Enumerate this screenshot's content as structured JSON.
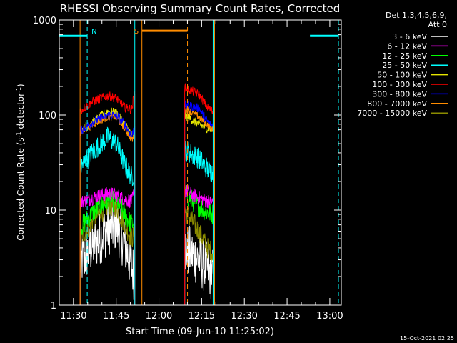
{
  "chart_data": {
    "type": "line",
    "title": "RHESSI Observing Summary Count Rates, Corrected",
    "xlabel": "Start Time (09-Jun-10 11:25:02)",
    "ylabel_main": "Corrected Count Rate (s",
    "ylabel_sup1": "-1",
    "ylabel_mid": " detector",
    "ylabel_sup2": "-1",
    "ylabel_end": ")",
    "yscale": "log",
    "ylim": [
      1,
      1000
    ],
    "y_ticks": [
      {
        "value": 1,
        "label": "1"
      },
      {
        "value": 10,
        "label": "10"
      },
      {
        "value": 100,
        "label": "100"
      },
      {
        "value": 1000,
        "label": "1000"
      }
    ],
    "x_unit": "minutes after 11:25:02",
    "xlim": [
      0,
      99
    ],
    "x_ticks": [
      {
        "value": 4.97,
        "label": "11:30"
      },
      {
        "value": 19.97,
        "label": "11:45"
      },
      {
        "value": 34.97,
        "label": "12:00"
      },
      {
        "value": 49.97,
        "label": "12:15"
      },
      {
        "value": 64.97,
        "label": "12:30"
      },
      {
        "value": 79.97,
        "label": "12:45"
      },
      {
        "value": 94.97,
        "label": "13:00"
      }
    ],
    "x_minor_step": 5,
    "legend": {
      "position": "top-right",
      "header_line1": "Det 1,3,4,5,6,9,",
      "header_line2": "Att 0",
      "entries": [
        {
          "label": "3 - 6 keV",
          "color": "#ffffff"
        },
        {
          "label": "6 - 12 keV",
          "color": "#ff00ff"
        },
        {
          "label": "12 - 25 keV",
          "color": "#00ff00"
        },
        {
          "label": "25 - 50 keV",
          "color": "#00ffff"
        },
        {
          "label": "50 - 100 keV",
          "color": "#e6e600"
        },
        {
          "label": "100 - 300 keV",
          "color": "#ff0000"
        },
        {
          "label": "300 - 800 keV",
          "color": "#0000ff"
        },
        {
          "label": "800 - 7000 keV",
          "color": "#ff8c00"
        },
        {
          "label": "7000 - 15000 keV",
          "color": "#8b8b00"
        }
      ]
    },
    "segments": [
      {
        "x_start": 7.3,
        "x_end": 26.5
      },
      {
        "x_start": 44.0,
        "x_end": 54.5
      }
    ],
    "series": [
      {
        "label": "3 - 6 keV",
        "color": "#ffffff",
        "noise": 0.3,
        "points": [
          [
            7.3,
            2.8
          ],
          [
            12,
            4.3
          ],
          [
            17,
            6.3
          ],
          [
            20,
            7.0
          ],
          [
            23,
            4.3
          ],
          [
            25.5,
            2.5
          ],
          [
            26.5,
            2.0
          ],
          [
            44,
            4.0
          ],
          [
            49,
            3.0
          ],
          [
            52,
            2.4
          ],
          [
            54.5,
            2.0
          ]
        ]
      },
      {
        "label": "6 - 12 keV",
        "color": "#ff00ff",
        "noise": 0.08,
        "points": [
          [
            7.3,
            12
          ],
          [
            12,
            13.5
          ],
          [
            17,
            15
          ],
          [
            20,
            14.5
          ],
          [
            23,
            13
          ],
          [
            25.5,
            12.5
          ],
          [
            26.5,
            16
          ],
          [
            44,
            16
          ],
          [
            49,
            13.5
          ],
          [
            52,
            12.5
          ],
          [
            54.5,
            12
          ]
        ]
      },
      {
        "label": "12 - 25 keV",
        "color": "#00ff00",
        "noise": 0.12,
        "points": [
          [
            7.3,
            6.5
          ],
          [
            12,
            9.5
          ],
          [
            17,
            12.5
          ],
          [
            20,
            12.5
          ],
          [
            23,
            9
          ],
          [
            25.5,
            7
          ],
          [
            26.5,
            8
          ],
          [
            44,
            15
          ],
          [
            49,
            11
          ],
          [
            52,
            9.5
          ],
          [
            54.5,
            9
          ]
        ]
      },
      {
        "label": "25 - 50 keV",
        "color": "#00ffff",
        "noise": 0.12,
        "points": [
          [
            7.3,
            28
          ],
          [
            12,
            42
          ],
          [
            17,
            58
          ],
          [
            20,
            50
          ],
          [
            23,
            30
          ],
          [
            25.5,
            22
          ],
          [
            26.5,
            26
          ],
          [
            44,
            43
          ],
          [
            49,
            35
          ],
          [
            52,
            27
          ],
          [
            54.5,
            24
          ]
        ]
      },
      {
        "label": "50 - 100 keV",
        "color": "#e6e600",
        "noise": 0.05,
        "points": [
          [
            7.3,
            68
          ],
          [
            12,
            85
          ],
          [
            17,
            110
          ],
          [
            20,
            105
          ],
          [
            23,
            80
          ],
          [
            25.5,
            62
          ],
          [
            26.5,
            60
          ],
          [
            44,
            100
          ],
          [
            49,
            80
          ],
          [
            52,
            72
          ],
          [
            54.5,
            68
          ]
        ]
      },
      {
        "label": "100 - 300 keV",
        "color": "#ff0000",
        "noise": 0.05,
        "points": [
          [
            7.3,
            110
          ],
          [
            12,
            140
          ],
          [
            17,
            160
          ],
          [
            20,
            150
          ],
          [
            23,
            120
          ],
          [
            25.5,
            115
          ],
          [
            26.5,
            185
          ],
          [
            44,
            195
          ],
          [
            49,
            165
          ],
          [
            52,
            120
          ],
          [
            54.5,
            105
          ]
        ]
      },
      {
        "label": "300 - 800 keV",
        "color": "#0000ff",
        "noise": 0.05,
        "points": [
          [
            7.3,
            68
          ],
          [
            12,
            85
          ],
          [
            17,
            100
          ],
          [
            20,
            100
          ],
          [
            23,
            80
          ],
          [
            25.5,
            60
          ],
          [
            26.5,
            80
          ],
          [
            44,
            128
          ],
          [
            49,
            118
          ],
          [
            52,
            85
          ],
          [
            54.5,
            75
          ]
        ]
      },
      {
        "label": "800 - 7000 keV",
        "color": "#ff8c00",
        "noise": 0.04,
        "points": [
          [
            7.3,
            65
          ],
          [
            12,
            80
          ],
          [
            17,
            95
          ],
          [
            20,
            95
          ],
          [
            23,
            72
          ],
          [
            25.5,
            55
          ],
          [
            26.5,
            60
          ],
          [
            44,
            118
          ],
          [
            49,
            95
          ],
          [
            52,
            80
          ],
          [
            54.5,
            68
          ]
        ]
      },
      {
        "label": "7000 - 15000 keV",
        "color": "#8b8b00",
        "noise": 0.12,
        "points": [
          [
            7.3,
            5
          ],
          [
            12,
            8
          ],
          [
            17,
            11
          ],
          [
            20,
            11
          ],
          [
            23,
            7
          ],
          [
            25.5,
            5
          ],
          [
            26.5,
            6
          ],
          [
            44,
            10
          ],
          [
            49,
            6
          ],
          [
            52,
            4
          ],
          [
            54.5,
            3.5
          ]
        ]
      }
    ],
    "night_bars": [
      {
        "x_start": 0,
        "x_end": 9.8,
        "y": 680,
        "color": "#00ffff"
      },
      {
        "x_start": 88.0,
        "x_end": 98.0,
        "y": 680,
        "color": "#00ffff"
      }
    ],
    "saa_bar": {
      "x_start": 29.0,
      "x_end": 45.0,
      "y": 770,
      "color": "#ff8c00"
    },
    "vertical_markers": [
      {
        "x": 9.8,
        "color": "#00ffff",
        "style": "dashed",
        "label": "N"
      },
      {
        "x": 7.3,
        "color": "#ff8c00",
        "style": "solid",
        "label": ""
      },
      {
        "x": 26.5,
        "color": "#00ffff",
        "style": "solid",
        "label": ""
      },
      {
        "x": 29.0,
        "color": "#ff8c00",
        "style": "solid",
        "label": "S"
      },
      {
        "x": 45.0,
        "color": "#ff8c00",
        "style": "dashed",
        "label": ""
      },
      {
        "x": 54.5,
        "color": "#ff8c00",
        "style": "solid",
        "label": ""
      },
      {
        "x": 54.0,
        "color": "#00ffff",
        "style": "solid",
        "label": ""
      },
      {
        "x": 98.0,
        "color": "#00ffff",
        "style": "dashed",
        "label": ""
      }
    ]
  },
  "footer": {
    "timestamp": "15-Oct-2021 02:25"
  }
}
